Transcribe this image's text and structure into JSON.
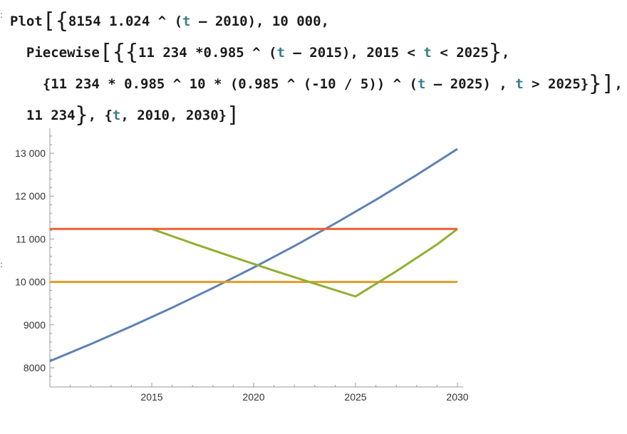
{
  "code": {
    "lines": [
      [
        {
          "t": "Plot"
        },
        {
          "t": "[",
          "c": "bracket"
        },
        {
          "t": "{",
          "c": "bracket"
        },
        {
          "t": "8154 1.024 ^ ("
        },
        {
          "t": "t",
          "c": "var"
        },
        {
          "t": " – 2010), 10 000,"
        }
      ],
      [
        {
          "t": "  Piecewise"
        },
        {
          "t": "[",
          "c": "bracket"
        },
        {
          "t": "{",
          "c": "bracket"
        },
        {
          "t": "{",
          "c": "bracket"
        },
        {
          "t": "11 234 *0.985 ^ ("
        },
        {
          "t": "t",
          "c": "var"
        },
        {
          "t": " – 2015), 2015 < "
        },
        {
          "t": "t",
          "c": "var"
        },
        {
          "t": " < 2025"
        },
        {
          "t": "}",
          "c": "bracket"
        },
        {
          "t": ","
        }
      ],
      [
        {
          "t": "    {11 234 * 0.985 ^ 10 * (0.985 ^ (-10 / 5)) ^ ("
        },
        {
          "t": "t",
          "c": "var"
        },
        {
          "t": " – 2025) , "
        },
        {
          "t": "t",
          "c": "var"
        },
        {
          "t": " > 2025}"
        },
        {
          "t": "}",
          "c": "bracket"
        },
        {
          "t": "]",
          "c": "bracket"
        },
        {
          "t": ","
        }
      ],
      [
        {
          "t": "  11 234"
        },
        {
          "t": "}",
          "c": "bracket"
        },
        {
          "t": ", {"
        },
        {
          "t": "t",
          "c": "var"
        },
        {
          "t": ", 2010, 2030}"
        },
        {
          "t": "]",
          "c": "bracket"
        }
      ]
    ]
  },
  "chart_data": {
    "type": "line",
    "xlim": [
      2010,
      2030
    ],
    "ylim": [
      7600,
      13400
    ],
    "x_ticks": [
      2015,
      2020,
      2025,
      2030
    ],
    "x_tick_labels": [
      "2015",
      "2020",
      "2025",
      "2030"
    ],
    "y_ticks": [
      8000,
      9000,
      10000,
      11000,
      12000,
      13000
    ],
    "y_tick_labels": [
      "8000",
      "9000",
      "10 000",
      "11 000",
      "12 000",
      "13 000"
    ],
    "grid": false,
    "series": [
      {
        "color": "#5e81b5",
        "x": [
          2010,
          2012,
          2014,
          2016,
          2018,
          2020,
          2022,
          2024,
          2026,
          2028,
          2030
        ],
        "y": [
          8154,
          8550,
          8965,
          9400,
          9857,
          10335,
          10837,
          11363,
          11915,
          12494,
          13100
        ]
      },
      {
        "color": "#e19c24",
        "x": [
          2010,
          2030
        ],
        "y": [
          10000,
          10000
        ]
      },
      {
        "color": "#8fb032",
        "x": [
          2015,
          2017,
          2019,
          2021,
          2023,
          2025,
          2027,
          2029,
          2030
        ],
        "y": [
          11234,
          10900,
          10578,
          10263,
          9958,
          9661,
          10249,
          10873,
          11234
        ]
      },
      {
        "color": "#eb6235",
        "x": [
          2010,
          2030
        ],
        "y": [
          11234,
          11234
        ]
      }
    ]
  }
}
